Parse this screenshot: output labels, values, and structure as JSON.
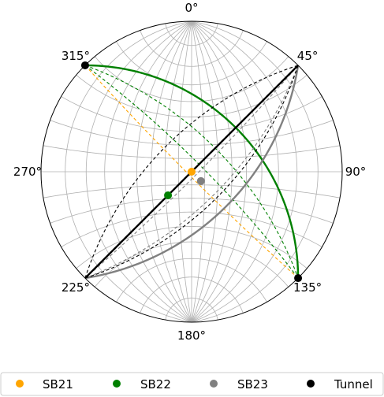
{
  "chart_data": {
    "type": "stereonet",
    "projection": "equal-angle, lower hemisphere",
    "grid": true,
    "azimuth_ticks": [
      "0°",
      "45°",
      "90°",
      "135°",
      "180°",
      "225°",
      "270°",
      "315°"
    ],
    "legend_placement": "bottom",
    "series": [
      {
        "name": "SB21",
        "color": "#ffa500",
        "planes": [
          {
            "strike": 135,
            "dip": 87,
            "style": "dashed"
          }
        ],
        "poles": [
          {
            "trend": 0,
            "plunge": 90
          }
        ]
      },
      {
        "name": "SB22",
        "color": "#008000",
        "planes": [
          {
            "strike": 315,
            "dip": 45,
            "style": "solid"
          },
          {
            "strike": 315,
            "dip": 82,
            "style": "dashed"
          },
          {
            "strike": 315,
            "dip": 65,
            "style": "dashed"
          }
        ],
        "poles": [
          {
            "trend": 225,
            "plunge": 65
          }
        ]
      },
      {
        "name": "SB23",
        "color": "#808080",
        "planes": [
          {
            "strike": 45,
            "dip": 54,
            "style": "solid"
          },
          {
            "strike": 45,
            "dip": 86,
            "style": "dashed"
          },
          {
            "strike": 45,
            "dip": 66,
            "style": "dashed"
          }
        ],
        "poles": [
          {
            "trend": 135,
            "plunge": 80
          }
        ]
      },
      {
        "name": "Tunnel",
        "color": "#000000",
        "planes": [
          {
            "strike": 45,
            "dip": 90,
            "style": "solid"
          },
          {
            "strike": 45,
            "dip": 63,
            "style": "dashed"
          },
          {
            "strike": 225,
            "dip": 63,
            "style": "dashed"
          }
        ],
        "poles": [
          {
            "trend": 135,
            "plunge": 0
          },
          {
            "trend": 315,
            "plunge": 0
          }
        ]
      }
    ]
  }
}
